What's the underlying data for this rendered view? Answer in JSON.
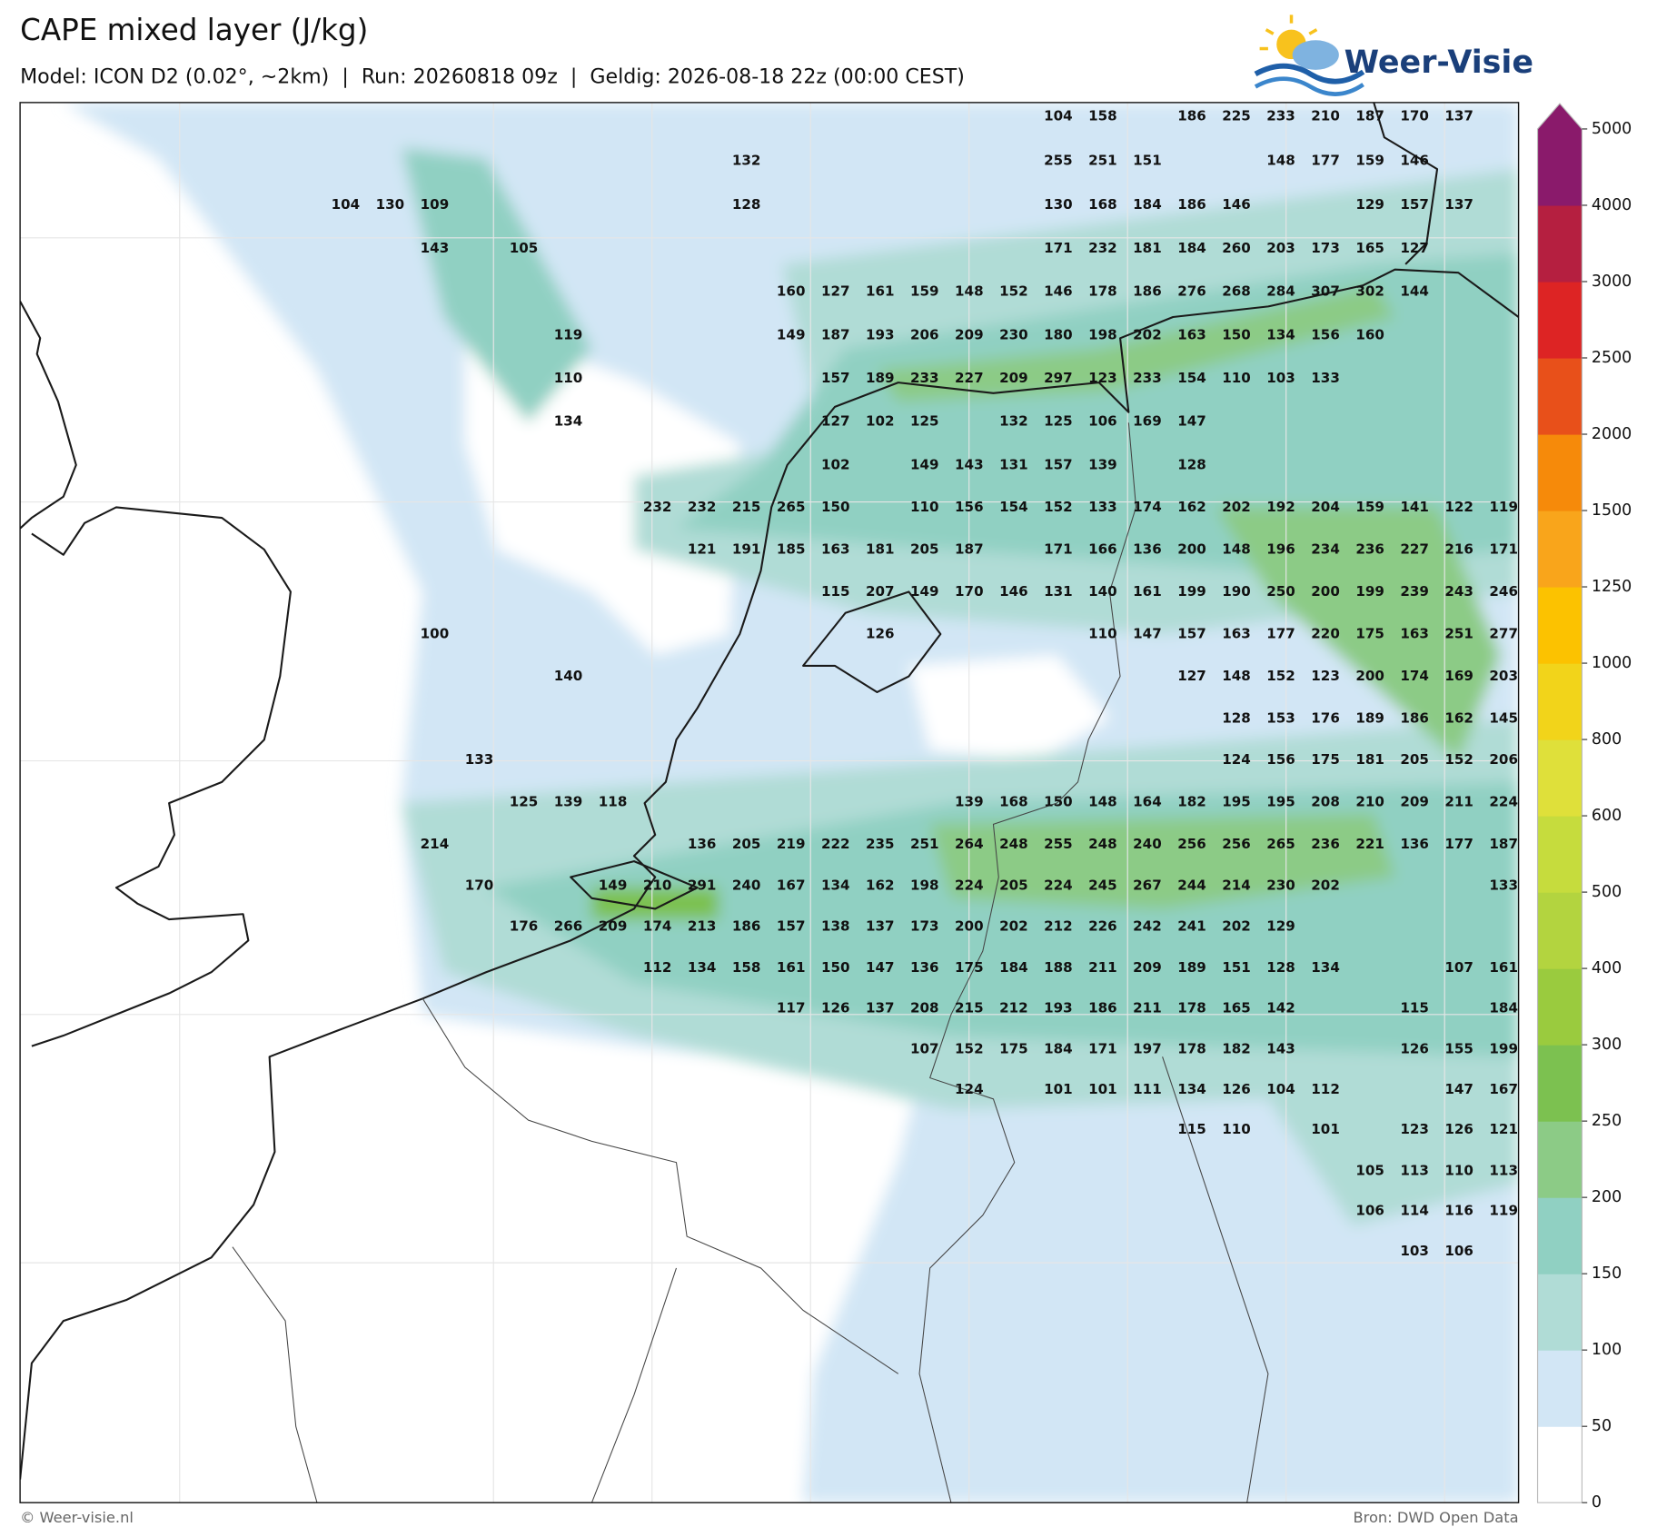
{
  "header": {
    "title": "CAPE mixed layer (J/kg)",
    "subtitle": "Model: ICON D2 (0.02°, ~2km)  |  Run: 20260818 09z  |  Geldig: 2026-08-18 22z (00:00 CEST)"
  },
  "logo": "Weer-Visie",
  "labels": [
    [
      null,
      null,
      null,
      null,
      null,
      null,
      null,
      null,
      null,
      null,
      null,
      null,
      null,
      null,
      null,
      null,
      104,
      158,
      null,
      186,
      225,
      233,
      210,
      187,
      170,
      137,
      null
    ],
    [
      null,
      null,
      null,
      null,
      null,
      null,
      null,
      null,
      null,
      132,
      null,
      null,
      null,
      null,
      null,
      null,
      255,
      251,
      151,
      null,
      null,
      148,
      177,
      159,
      146,
      null,
      null
    ],
    [
      104,
      130,
      109,
      null,
      null,
      null,
      null,
      null,
      null,
      128,
      null,
      null,
      null,
      null,
      null,
      null,
      130,
      168,
      184,
      186,
      146,
      null,
      null,
      129,
      157,
      137,
      null
    ],
    [
      null,
      null,
      143,
      null,
      105,
      null,
      null,
      null,
      null,
      null,
      null,
      null,
      null,
      null,
      null,
      null,
      171,
      232,
      181,
      184,
      260,
      203,
      173,
      165,
      127,
      null,
      null
    ],
    [
      null,
      null,
      null,
      null,
      null,
      null,
      null,
      null,
      null,
      null,
      160,
      127,
      161,
      159,
      148,
      152,
      146,
      178,
      186,
      276,
      268,
      284,
      307,
      302,
      144,
      null,
      null
    ],
    [
      null,
      null,
      null,
      null,
      null,
      119,
      null,
      null,
      null,
      null,
      149,
      187,
      193,
      206,
      209,
      230,
      180,
      198,
      202,
      163,
      150,
      134,
      156,
      160,
      null,
      null,
      null
    ],
    [
      null,
      null,
      null,
      null,
      null,
      110,
      null,
      null,
      null,
      null,
      null,
      157,
      189,
      233,
      227,
      209,
      297,
      123,
      233,
      154,
      110,
      103,
      133,
      null,
      null,
      null,
      null
    ],
    [
      null,
      null,
      null,
      null,
      null,
      134,
      null,
      null,
      null,
      null,
      null,
      127,
      102,
      125,
      null,
      132,
      125,
      106,
      169,
      147,
      null,
      null,
      null,
      null,
      null,
      null,
      null
    ],
    [
      null,
      null,
      null,
      null,
      null,
      null,
      null,
      null,
      null,
      null,
      null,
      102,
      null,
      149,
      143,
      131,
      157,
      139,
      null,
      128,
      null,
      null,
      null,
      null,
      null,
      null,
      null
    ],
    [
      null,
      null,
      null,
      null,
      null,
      null,
      null,
      232,
      232,
      215,
      265,
      150,
      null,
      110,
      156,
      154,
      152,
      133,
      174,
      162,
      202,
      192,
      204,
      159,
      141,
      122,
      119
    ],
    [
      null,
      null,
      null,
      null,
      null,
      null,
      null,
      null,
      121,
      191,
      185,
      163,
      181,
      205,
      187,
      null,
      171,
      166,
      136,
      200,
      148,
      196,
      234,
      236,
      227,
      216,
      171
    ],
    [
      null,
      null,
      null,
      null,
      null,
      null,
      null,
      null,
      null,
      null,
      null,
      115,
      207,
      149,
      170,
      146,
      131,
      140,
      161,
      199,
      190,
      250,
      200,
      199,
      239,
      243,
      246
    ],
    [
      null,
      null,
      100,
      null,
      null,
      null,
      null,
      null,
      null,
      null,
      null,
      null,
      126,
      null,
      null,
      null,
      null,
      110,
      147,
      157,
      163,
      177,
      220,
      175,
      163,
      251,
      277
    ],
    [
      null,
      null,
      null,
      null,
      null,
      140,
      null,
      null,
      null,
      null,
      null,
      null,
      null,
      null,
      null,
      null,
      null,
      null,
      null,
      127,
      148,
      152,
      123,
      200,
      174,
      169,
      203
    ],
    [
      null,
      null,
      null,
      null,
      null,
      null,
      null,
      null,
      null,
      null,
      null,
      null,
      null,
      null,
      null,
      null,
      null,
      null,
      null,
      null,
      128,
      153,
      176,
      189,
      186,
      162,
      145
    ],
    [
      null,
      null,
      null,
      133,
      null,
      null,
      null,
      null,
      null,
      null,
      null,
      null,
      null,
      null,
      null,
      null,
      null,
      null,
      null,
      null,
      124,
      156,
      175,
      181,
      205,
      152,
      206
    ],
    [
      null,
      null,
      null,
      null,
      125,
      139,
      118,
      null,
      null,
      null,
      null,
      null,
      null,
      null,
      139,
      168,
      150,
      148,
      164,
      182,
      195,
      195,
      208,
      210,
      209,
      211,
      224
    ],
    [
      null,
      null,
      214,
      null,
      null,
      null,
      null,
      null,
      136,
      205,
      219,
      222,
      235,
      251,
      264,
      248,
      255,
      248,
      240,
      256,
      256,
      265,
      236,
      221,
      136,
      177,
      187
    ],
    [
      null,
      null,
      null,
      170,
      null,
      null,
      149,
      210,
      291,
      240,
      167,
      134,
      162,
      198,
      224,
      205,
      224,
      245,
      267,
      244,
      214,
      230,
      202,
      null,
      null,
      null,
      133
    ],
    [
      null,
      null,
      null,
      null,
      176,
      266,
      209,
      174,
      213,
      186,
      157,
      138,
      137,
      173,
      200,
      202,
      212,
      226,
      242,
      241,
      202,
      129,
      null,
      null,
      null,
      null,
      null
    ],
    [
      null,
      null,
      null,
      null,
      null,
      null,
      null,
      112,
      134,
      158,
      161,
      150,
      147,
      136,
      175,
      184,
      188,
      211,
      209,
      189,
      151,
      128,
      134,
      null,
      null,
      107,
      161
    ],
    [
      null,
      null,
      null,
      null,
      null,
      null,
      null,
      null,
      null,
      null,
      117,
      126,
      137,
      208,
      215,
      212,
      193,
      186,
      211,
      178,
      165,
      142,
      null,
      null,
      115,
      null,
      184
    ],
    [
      null,
      null,
      null,
      null,
      null,
      null,
      null,
      null,
      null,
      null,
      null,
      null,
      null,
      107,
      152,
      175,
      184,
      171,
      197,
      178,
      182,
      143,
      null,
      null,
      126,
      155,
      199
    ],
    [
      null,
      null,
      null,
      null,
      null,
      null,
      null,
      null,
      null,
      null,
      null,
      null,
      null,
      null,
      124,
      null,
      101,
      101,
      111,
      134,
      126,
      104,
      112,
      null,
      null,
      147,
      167
    ],
    [
      null,
      null,
      null,
      null,
      null,
      null,
      null,
      null,
      null,
      null,
      null,
      null,
      null,
      null,
      null,
      null,
      null,
      null,
      null,
      115,
      110,
      null,
      101,
      null,
      123,
      126,
      121
    ],
    [
      null,
      null,
      null,
      null,
      null,
      null,
      null,
      null,
      null,
      null,
      null,
      null,
      null,
      null,
      null,
      null,
      null,
      null,
      null,
      null,
      null,
      null,
      null,
      105,
      113,
      110,
      113
    ],
    [
      null,
      null,
      null,
      null,
      null,
      null,
      null,
      null,
      null,
      null,
      null,
      null,
      null,
      null,
      null,
      null,
      null,
      null,
      null,
      null,
      null,
      null,
      null,
      106,
      114,
      116,
      119
    ],
    [
      null,
      null,
      null,
      null,
      null,
      null,
      null,
      null,
      null,
      null,
      null,
      null,
      null,
      null,
      null,
      null,
      null,
      null,
      null,
      null,
      null,
      null,
      null,
      null,
      103,
      106,
      null
    ]
  ],
  "colorbar": {
    "ticks": [
      0,
      50,
      100,
      150,
      200,
      250,
      300,
      400,
      500,
      600,
      800,
      1000,
      1250,
      1500,
      2000,
      2500,
      3000,
      4000,
      5000
    ],
    "colors": [
      "#ffffff",
      "#d2e6f5",
      "#b0dcd6",
      "#90d0c2",
      "#8ccb86",
      "#7cc150",
      "#9acb3e",
      "#b3d43f",
      "#c6dc3d",
      "#dfe03a",
      "#f2d41a",
      "#fcc200",
      "#f9a51b",
      "#f68a0a",
      "#e8501a",
      "#dd2424",
      "#b51f40",
      "#8a1a6b"
    ],
    "extend_color": "#8a1a6b"
  },
  "footer": {
    "left": "© Weer-visie.nl",
    "right": "Bron: DWD Open Data"
  }
}
